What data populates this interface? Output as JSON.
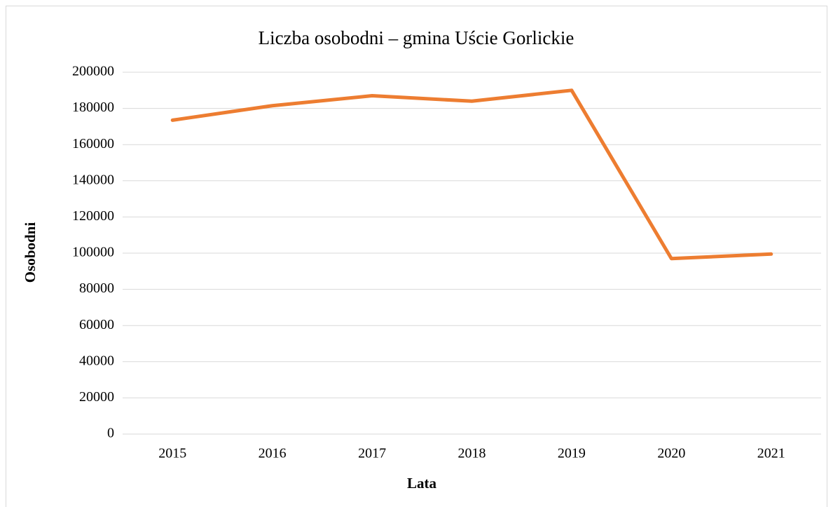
{
  "chart_data": {
    "type": "line",
    "title": "Liczba osobodni – gmina Uście Gorlickie",
    "x_label": "Lata",
    "y_label": "Osobodni",
    "categories": [
      "2015",
      "2016",
      "2017",
      "2018",
      "2019",
      "2020",
      "2021"
    ],
    "series": [
      {
        "name": "Osobodni",
        "color": "#ed7d31",
        "values": [
          173500,
          181500,
          187000,
          184000,
          190000,
          97000,
          99500
        ]
      }
    ],
    "ylim": [
      0,
      200000
    ],
    "yticks": [
      0,
      20000,
      40000,
      60000,
      80000,
      100000,
      120000,
      140000,
      160000,
      180000,
      200000
    ],
    "grid": true,
    "legend": false
  }
}
